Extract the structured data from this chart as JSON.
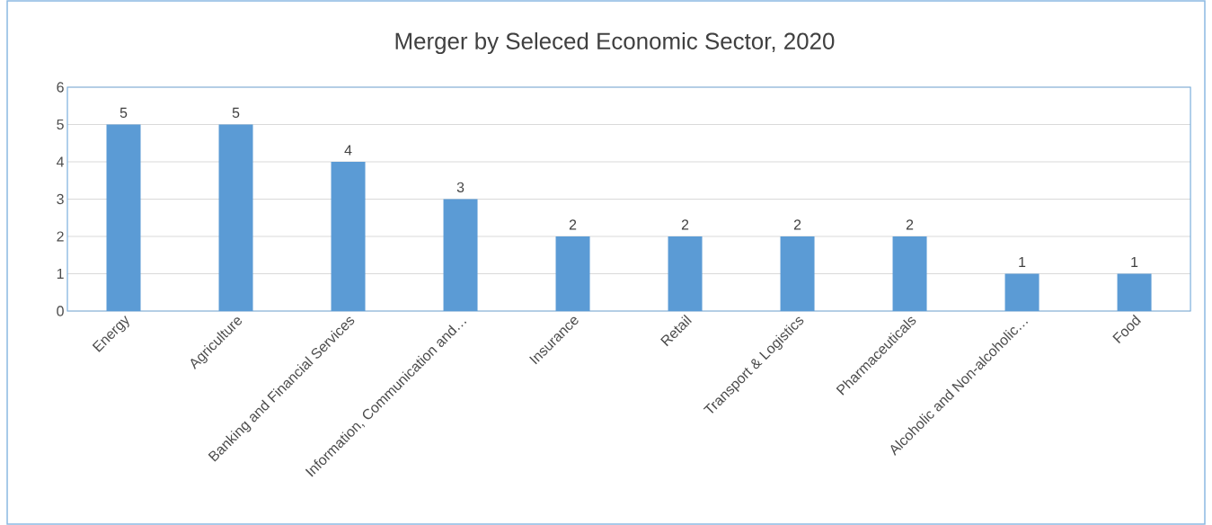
{
  "chart_data": {
    "type": "bar",
    "title": "Merger by Seleced Economic Sector, 2020",
    "categories": [
      "Energy",
      "Agriculture",
      "Banking and Financial Services",
      "Information, Communication and…",
      "Insurance",
      "Retail",
      "Transport & Logistics",
      "Pharmaceuticals",
      "Alcoholic and Non-alcoholic…",
      "Food"
    ],
    "values": [
      5,
      5,
      4,
      3,
      2,
      2,
      2,
      2,
      1,
      1
    ],
    "color": "#5b9bd5",
    "ylim": [
      0,
      6
    ],
    "yticks": [
      0,
      1,
      2,
      3,
      4,
      5,
      6
    ],
    "grid": "y",
    "data_labels": true
  }
}
